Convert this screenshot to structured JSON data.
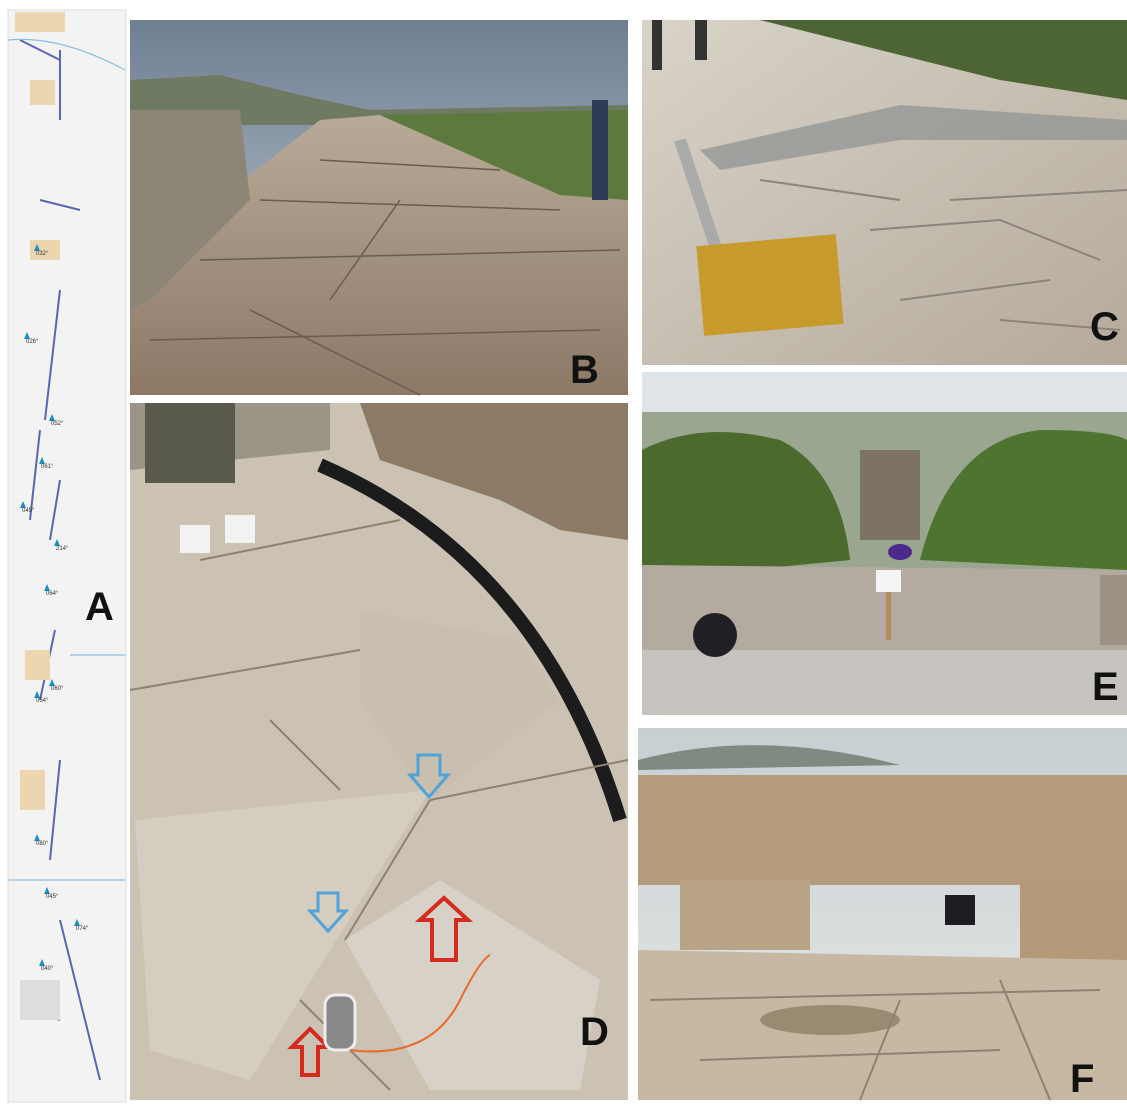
{
  "panels": [
    {
      "label": "A",
      "annotations": [
        "032°",
        "026°",
        "052°",
        "061°",
        "045°",
        "214°",
        "064°",
        "060°",
        "054°",
        "080°",
        "045°",
        "074°",
        "040°"
      ]
    },
    {
      "label": "B"
    },
    {
      "label": "C"
    },
    {
      "label": "D"
    },
    {
      "label": "E"
    },
    {
      "label": "F"
    }
  ]
}
